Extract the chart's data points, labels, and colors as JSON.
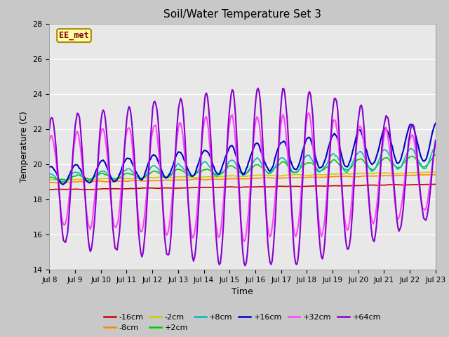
{
  "title": "Soil/Water Temperature Set 3",
  "xlabel": "Time",
  "ylabel": "Temperature (C)",
  "ylim": [
    14,
    28
  ],
  "yticks": [
    14,
    16,
    18,
    20,
    22,
    24,
    26,
    28
  ],
  "xlim": [
    0,
    15
  ],
  "xtick_labels": [
    "Jul 8",
    "Jul 9",
    "Jul 10",
    "Jul 11",
    "Jul 12",
    "Jul 13",
    "Jul 14",
    "Jul 15",
    "Jul 16",
    "Jul 17",
    "Jul 18",
    "Jul 19",
    "Jul 20",
    "Jul 21",
    "Jul 22",
    "Jul 23"
  ],
  "fig_bg": "#c8c8c8",
  "plot_bg": "#e8e8e8",
  "grid_color": "#ffffff",
  "series": {
    "-16cm": {
      "color": "#cc0000",
      "lw": 1.2
    },
    "-8cm": {
      "color": "#ff8800",
      "lw": 1.2
    },
    "-2cm": {
      "color": "#cccc00",
      "lw": 1.2
    },
    "+2cm": {
      "color": "#00cc00",
      "lw": 1.2
    },
    "+8cm": {
      "color": "#00bbbb",
      "lw": 1.2
    },
    "+16cm": {
      "color": "#0000cc",
      "lw": 1.5
    },
    "+32cm": {
      "color": "#ff44ff",
      "lw": 1.5
    },
    "+64cm": {
      "color": "#8800cc",
      "lw": 1.5
    }
  },
  "watermark": "EE_met",
  "watermark_color": "#880000",
  "watermark_bg": "#ffffaa",
  "watermark_border": "#aa8800"
}
